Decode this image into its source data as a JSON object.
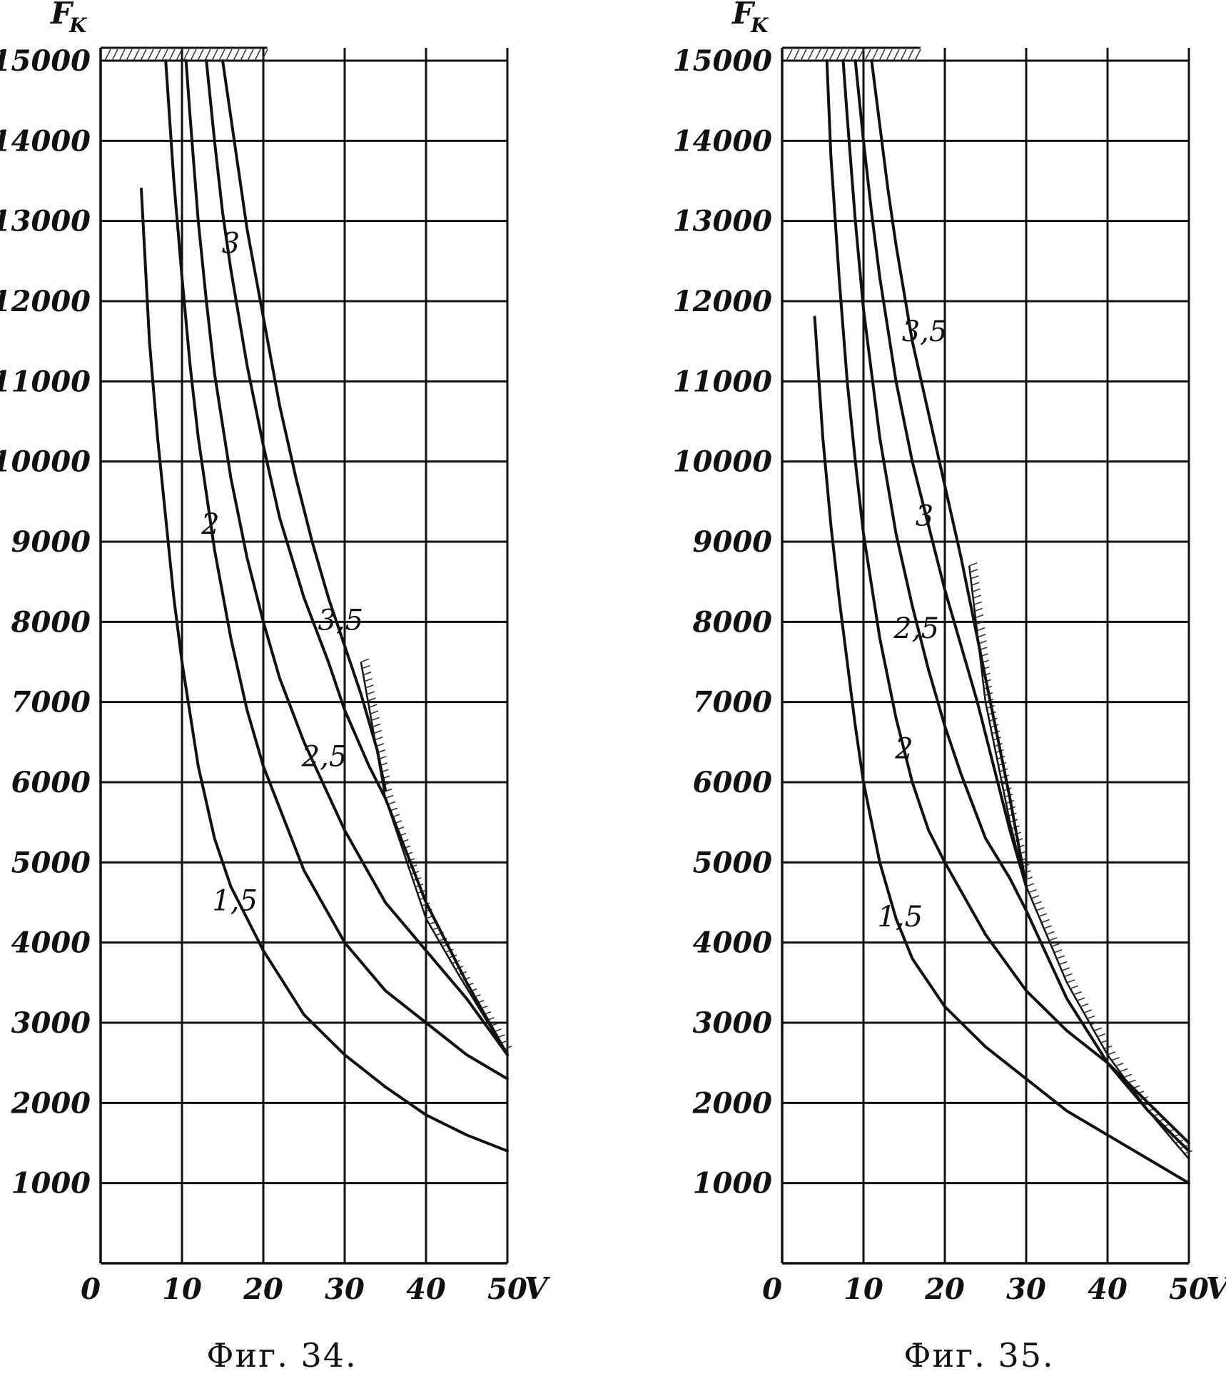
{
  "chart_data": [
    {
      "type": "line",
      "caption": "Фиг. 34.",
      "ylabel": "F",
      "ylabel_sub": "K",
      "xlabel": "V",
      "xlim": [
        0,
        50
      ],
      "ylim": [
        0,
        15000
      ],
      "x_ticks": [
        "0",
        "10",
        "20",
        "30",
        "40",
        "50"
      ],
      "y_ticks": [
        "1000",
        "2000",
        "3000",
        "4000",
        "5000",
        "6000",
        "7000",
        "8000",
        "9000",
        "10000",
        "11000",
        "12000",
        "13000",
        "14000",
        "15000"
      ],
      "grid": true,
      "series": [
        {
          "name": "1,5",
          "x": [
            5,
            6,
            7,
            8,
            9,
            10,
            12,
            14,
            16,
            18,
            20,
            25,
            30,
            35,
            40,
            45,
            50
          ],
          "y": [
            13400,
            11500,
            10300,
            9300,
            8300,
            7500,
            6200,
            5300,
            4700,
            4300,
            3900,
            3100,
            2600,
            2200,
            1850,
            1600,
            1400
          ]
        },
        {
          "name": "2",
          "x": [
            8,
            9,
            10,
            11,
            12,
            14,
            16,
            18,
            20,
            25,
            30,
            35,
            40,
            45,
            50
          ],
          "y": [
            15000,
            13500,
            12300,
            11200,
            10300,
            8900,
            7800,
            6900,
            6200,
            4900,
            4000,
            3400,
            3000,
            2600,
            2300
          ]
        },
        {
          "name": "2,5",
          "x": [
            10.5,
            11,
            12,
            13,
            14,
            16,
            18,
            20,
            22,
            25,
            30,
            35,
            40,
            45,
            50
          ],
          "y": [
            15000,
            14300,
            13000,
            12000,
            11100,
            9800,
            8800,
            8000,
            7300,
            6500,
            5400,
            4500,
            3900,
            3300,
            2600
          ]
        },
        {
          "name": "3",
          "x": [
            13,
            14,
            15,
            16,
            18,
            20,
            22,
            25,
            28,
            30,
            33,
            35,
            40,
            45,
            50
          ],
          "y": [
            15000,
            14000,
            13100,
            12400,
            11200,
            10200,
            9300,
            8300,
            7500,
            6900,
            6200,
            5800,
            4500,
            3500,
            2600
          ]
        },
        {
          "name": "3,5",
          "x": [
            15,
            16,
            17,
            18,
            20,
            22,
            24,
            26,
            28,
            30,
            32,
            34,
            35
          ],
          "y": [
            15000,
            14300,
            13600,
            12900,
            11800,
            10700,
            9800,
            9000,
            8300,
            7700,
            7100,
            6400,
            5900
          ]
        }
      ],
      "limit_boundary": {
        "x": [
          32,
          35,
          40,
          44,
          50
        ],
        "y": [
          7500,
          5800,
          4300,
          3600,
          2600
        ]
      },
      "top_limit": {
        "y": 15000,
        "x_end": 20.5
      }
    },
    {
      "type": "line",
      "caption": "Фиг. 35.",
      "ylabel": "F",
      "ylabel_sub": "K",
      "xlabel": "V",
      "xlim": [
        0,
        50
      ],
      "ylim": [
        0,
        15000
      ],
      "x_ticks": [
        "0",
        "10",
        "20",
        "30",
        "40",
        "50"
      ],
      "y_ticks": [
        "1000",
        "2000",
        "3000",
        "4000",
        "5000",
        "6000",
        "7000",
        "8000",
        "9000",
        "10000",
        "11000",
        "12000",
        "13000",
        "14000",
        "15000"
      ],
      "grid": true,
      "series": [
        {
          "name": "1,5",
          "x": [
            4,
            5,
            6,
            7,
            8,
            9,
            10,
            12,
            14,
            16,
            20,
            25,
            30,
            35,
            40,
            45,
            50
          ],
          "y": [
            11800,
            10300,
            9200,
            8300,
            7500,
            6700,
            6000,
            5000,
            4300,
            3800,
            3200,
            2700,
            2300,
            1900,
            1600,
            1300,
            1000
          ]
        },
        {
          "name": "2",
          "x": [
            5.5,
            6,
            7,
            8,
            9,
            10,
            12,
            14,
            16,
            18,
            20,
            25,
            30,
            35,
            40,
            45,
            50
          ],
          "y": [
            15000,
            13800,
            12300,
            11000,
            10000,
            9100,
            7800,
            6800,
            6000,
            5400,
            5000,
            4100,
            3400,
            2900,
            2500,
            2000,
            1500
          ]
        },
        {
          "name": "2,5",
          "x": [
            7.5,
            8,
            9,
            10,
            12,
            14,
            16,
            18,
            20,
            22,
            25,
            28,
            30,
            35,
            40,
            45,
            50
          ],
          "y": [
            15000,
            14300,
            13000,
            11900,
            10300,
            9100,
            8200,
            7400,
            6700,
            6100,
            5300,
            4800,
            4400,
            3300,
            2500,
            1900,
            1400
          ]
        },
        {
          "name": "3",
          "x": [
            9,
            10,
            11,
            12,
            14,
            16,
            18,
            20,
            22,
            24,
            26,
            28,
            30
          ],
          "y": [
            15000,
            14000,
            13100,
            12300,
            11000,
            10000,
            9200,
            8400,
            7700,
            7000,
            6200,
            5400,
            4700
          ]
        },
        {
          "name": "3,5",
          "x": [
            11,
            12,
            13,
            14,
            16,
            18,
            20,
            22,
            24,
            26,
            28,
            30
          ],
          "y": [
            15000,
            14200,
            13400,
            12700,
            11500,
            10600,
            9700,
            8800,
            7800,
            6800,
            5800,
            4700
          ]
        }
      ],
      "limit_boundary": {
        "x": [
          23,
          25,
          28,
          30,
          35,
          40,
          45,
          50
        ],
        "y": [
          8700,
          7000,
          5500,
          4700,
          3500,
          2600,
          1900,
          1300
        ]
      },
      "top_limit": {
        "y": 15000,
        "x_end": 17
      }
    }
  ]
}
